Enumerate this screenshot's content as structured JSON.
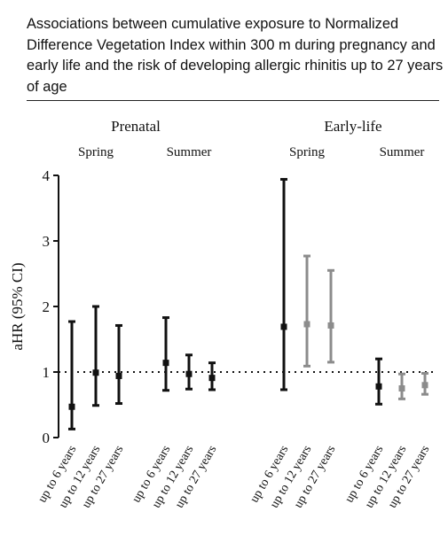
{
  "title": "Associations between cumulative exposure to Normalized Difference Vegetation Index within 300 m during pregnancy and early life and the risk of developing allergic rhinitis up to 27 years of age",
  "chart_data": {
    "type": "scatter",
    "title": "Associations between cumulative exposure to Normalized Difference Vegetation Index within 300 m during pregnancy and early life and the risk of developing allergic rhinitis up to 27 years of age",
    "ylabel": "aHR (95% CI)",
    "ylim": [
      0,
      4
    ],
    "yticks": [
      "0",
      "1",
      "2",
      "3",
      "4"
    ],
    "reference_line": 1,
    "grid": false,
    "period_labels": [
      "Prenatal",
      "Early-life"
    ],
    "season_labels": [
      "Spring",
      "Summer",
      "Spring",
      "Summer"
    ],
    "colors": {
      "black": "#111111",
      "grey": "#8c8c8c"
    },
    "points": [
      {
        "period": "Prenatal",
        "season": "Spring",
        "label": "up to 6 years",
        "est": 0.47,
        "lo": 0.13,
        "hi": 1.77,
        "color": "black"
      },
      {
        "period": "Prenatal",
        "season": "Spring",
        "label": "up to 12 years",
        "est": 0.99,
        "lo": 0.49,
        "hi": 2.0,
        "color": "black"
      },
      {
        "period": "Prenatal",
        "season": "Spring",
        "label": "up to 27 years",
        "est": 0.94,
        "lo": 0.52,
        "hi": 1.71,
        "color": "black"
      },
      {
        "period": "Prenatal",
        "season": "Summer",
        "label": "up to 6 years",
        "est": 1.14,
        "lo": 0.72,
        "hi": 1.83,
        "color": "black"
      },
      {
        "period": "Prenatal",
        "season": "Summer",
        "label": "up to 12 years",
        "est": 0.97,
        "lo": 0.74,
        "hi": 1.26,
        "color": "black"
      },
      {
        "period": "Prenatal",
        "season": "Summer",
        "label": "up to 27 years",
        "est": 0.91,
        "lo": 0.73,
        "hi": 1.14,
        "color": "black"
      },
      {
        "period": "Early-life",
        "season": "Spring",
        "label": "up to 6 years",
        "est": 1.69,
        "lo": 0.73,
        "hi": 3.94,
        "color": "black"
      },
      {
        "period": "Early-life",
        "season": "Spring",
        "label": "up to 12 years",
        "est": 1.73,
        "lo": 1.09,
        "hi": 2.77,
        "color": "grey"
      },
      {
        "period": "Early-life",
        "season": "Spring",
        "label": "up to 27 years",
        "est": 1.71,
        "lo": 1.15,
        "hi": 2.55,
        "color": "grey"
      },
      {
        "period": "Early-life",
        "season": "Summer",
        "label": "up to 6 years",
        "est": 0.78,
        "lo": 0.51,
        "hi": 1.2,
        "color": "black"
      },
      {
        "period": "Early-life",
        "season": "Summer",
        "label": "up to 12 years",
        "est": 0.75,
        "lo": 0.59,
        "hi": 0.97,
        "color": "grey"
      },
      {
        "period": "Early-life",
        "season": "Summer",
        "label": "up to 27 years",
        "est": 0.8,
        "lo": 0.66,
        "hi": 0.98,
        "color": "grey"
      }
    ]
  }
}
